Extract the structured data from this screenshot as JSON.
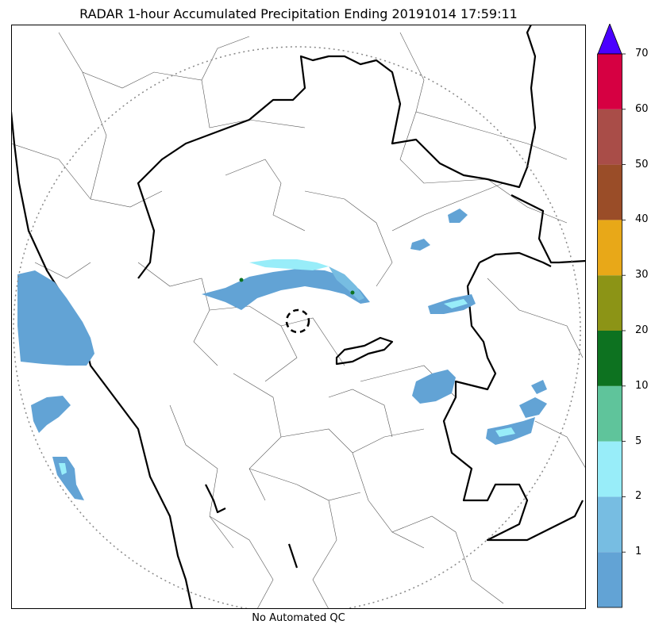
{
  "title": "RADAR 1-hour Accumulated Precipitation Ending 20191014 17:59:11",
  "footer_note": "No Automated QC",
  "colorbar": {
    "labels": [
      "1",
      "2",
      "5",
      "10",
      "20",
      "30",
      "40",
      "50",
      "60",
      "70"
    ],
    "colors": [
      "#62a3d5",
      "#77bde2",
      "#98edf9",
      "#5fc49b",
      "#0d7220",
      "#8c9416",
      "#e8a818",
      "#9a4d28",
      "#a94d48",
      "#d60042"
    ],
    "extend_color": "#4a00ff"
  },
  "map": {
    "range_ring_color": "#888888",
    "state_border_color": "#000000",
    "district_border_color": "#444444"
  }
}
